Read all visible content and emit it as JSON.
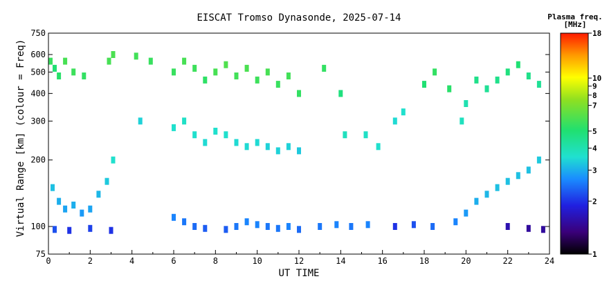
{
  "chart_data": {
    "type": "scatter",
    "title": "EISCAT Tromso Dynasonde, 2025-07-14",
    "xlabel": "UT TIME",
    "ylabel": "Virtual Range [km] (colour = Freq)",
    "xlim": [
      0,
      24
    ],
    "ylim": [
      75,
      750
    ],
    "y_scale": "log",
    "grid": false,
    "x_ticks": [
      "0",
      "2",
      "4",
      "6",
      "8",
      "10",
      "12",
      "14",
      "16",
      "18",
      "20",
      "22",
      "24"
    ],
    "y_ticks": [
      "75",
      "100",
      "200",
      "300",
      "400",
      "500",
      "600",
      "750"
    ],
    "colorbar": {
      "title_line1": "Plasma freq.",
      "title_line2": "[MHz]",
      "range": [
        1,
        18
      ],
      "ticks": [
        "1",
        "2",
        "3",
        "4",
        "5",
        "7",
        "8",
        "9",
        "10",
        "18"
      ]
    },
    "series": [
      {
        "points": [
          [
            0.1,
            560,
            5.5
          ],
          [
            0.3,
            520,
            5.0
          ],
          [
            0.5,
            480,
            5.2
          ],
          [
            0.8,
            560,
            5.8
          ],
          [
            1.2,
            500,
            5.6
          ],
          [
            1.7,
            480,
            5.4
          ],
          [
            2.9,
            560,
            5.8
          ],
          [
            3.1,
            600,
            5.9
          ],
          [
            4.2,
            590,
            5.7
          ],
          [
            4.9,
            560,
            5.5
          ],
          [
            4.4,
            300,
            3.4
          ],
          [
            6.0,
            500,
            5.5
          ],
          [
            6.5,
            560,
            5.8
          ],
          [
            7.0,
            520,
            5.6
          ],
          [
            7.5,
            460,
            5.3
          ],
          [
            8.0,
            500,
            5.8
          ],
          [
            8.5,
            540,
            6.0
          ],
          [
            9.0,
            480,
            5.7
          ],
          [
            9.5,
            520,
            5.9
          ],
          [
            10.0,
            460,
            5.6
          ],
          [
            10.5,
            500,
            5.8
          ],
          [
            11.0,
            440,
            5.5
          ],
          [
            11.5,
            480,
            5.7
          ],
          [
            12.0,
            400,
            5.4
          ],
          [
            6.0,
            280,
            3.6
          ],
          [
            6.5,
            300,
            3.7
          ],
          [
            7.0,
            260,
            3.6
          ],
          [
            7.5,
            240,
            3.5
          ],
          [
            8.0,
            270,
            3.6
          ],
          [
            8.5,
            260,
            3.6
          ],
          [
            9.0,
            240,
            3.5
          ],
          [
            9.5,
            230,
            3.5
          ],
          [
            10.0,
            240,
            3.5
          ],
          [
            10.5,
            230,
            3.4
          ],
          [
            11.0,
            220,
            3.4
          ],
          [
            11.5,
            230,
            3.4
          ],
          [
            12.0,
            220,
            3.3
          ],
          [
            13.2,
            520,
            5.4
          ],
          [
            14.0,
            400,
            4.8
          ],
          [
            14.2,
            260,
            3.8
          ],
          [
            15.2,
            260,
            3.7
          ],
          [
            15.8,
            230,
            3.6
          ],
          [
            16.6,
            300,
            3.5
          ],
          [
            17.0,
            330,
            3.6
          ],
          [
            18.0,
            440,
            5.0
          ],
          [
            18.5,
            500,
            5.4
          ],
          [
            19.2,
            420,
            5.2
          ],
          [
            19.8,
            300,
            3.8
          ],
          [
            20.0,
            360,
            4.0
          ],
          [
            20.5,
            460,
            4.6
          ],
          [
            21.0,
            420,
            4.4
          ],
          [
            21.5,
            460,
            4.6
          ],
          [
            22.0,
            500,
            4.8
          ],
          [
            22.5,
            540,
            5.0
          ],
          [
            23.0,
            480,
            4.6
          ],
          [
            23.5,
            440,
            4.4
          ],
          [
            0.2,
            150,
            3.2
          ],
          [
            0.5,
            130,
            3.0
          ],
          [
            0.8,
            120,
            2.9
          ],
          [
            1.2,
            125,
            3.0
          ],
          [
            1.6,
            115,
            2.8
          ],
          [
            2.0,
            120,
            2.9
          ],
          [
            2.4,
            140,
            3.1
          ],
          [
            2.8,
            160,
            3.3
          ],
          [
            3.1,
            200,
            3.6
          ],
          [
            0.3,
            97,
            2.2
          ],
          [
            1.0,
            96,
            2.0
          ],
          [
            2.0,
            98,
            2.1
          ],
          [
            3.0,
            96,
            2.0
          ],
          [
            6.0,
            110,
            2.6
          ],
          [
            6.5,
            105,
            2.5
          ],
          [
            7.0,
            100,
            2.4
          ],
          [
            7.5,
            98,
            2.3
          ],
          [
            8.5,
            97,
            2.3
          ],
          [
            9.0,
            100,
            2.5
          ],
          [
            9.5,
            105,
            2.6
          ],
          [
            10.0,
            102,
            2.6
          ],
          [
            10.5,
            100,
            2.5
          ],
          [
            11.0,
            98,
            2.5
          ],
          [
            11.5,
            100,
            2.6
          ],
          [
            12.0,
            97,
            2.4
          ],
          [
            13.0,
            100,
            2.5
          ],
          [
            13.8,
            102,
            2.6
          ],
          [
            14.5,
            100,
            2.5
          ],
          [
            15.3,
            102,
            2.6
          ],
          [
            16.6,
            100,
            2.0
          ],
          [
            17.5,
            102,
            2.2
          ],
          [
            18.4,
            100,
            2.4
          ],
          [
            19.5,
            105,
            2.6
          ],
          [
            20.0,
            115,
            2.8
          ],
          [
            20.5,
            130,
            3.0
          ],
          [
            21.0,
            140,
            3.1
          ],
          [
            21.5,
            150,
            3.2
          ],
          [
            22.0,
            160,
            3.2
          ],
          [
            22.5,
            170,
            3.2
          ],
          [
            23.0,
            180,
            3.2
          ],
          [
            23.5,
            200,
            3.3
          ],
          [
            22.0,
            100,
            1.6
          ],
          [
            23.0,
            98,
            1.5
          ],
          [
            23.7,
            97,
            1.5
          ]
        ]
      }
    ]
  }
}
